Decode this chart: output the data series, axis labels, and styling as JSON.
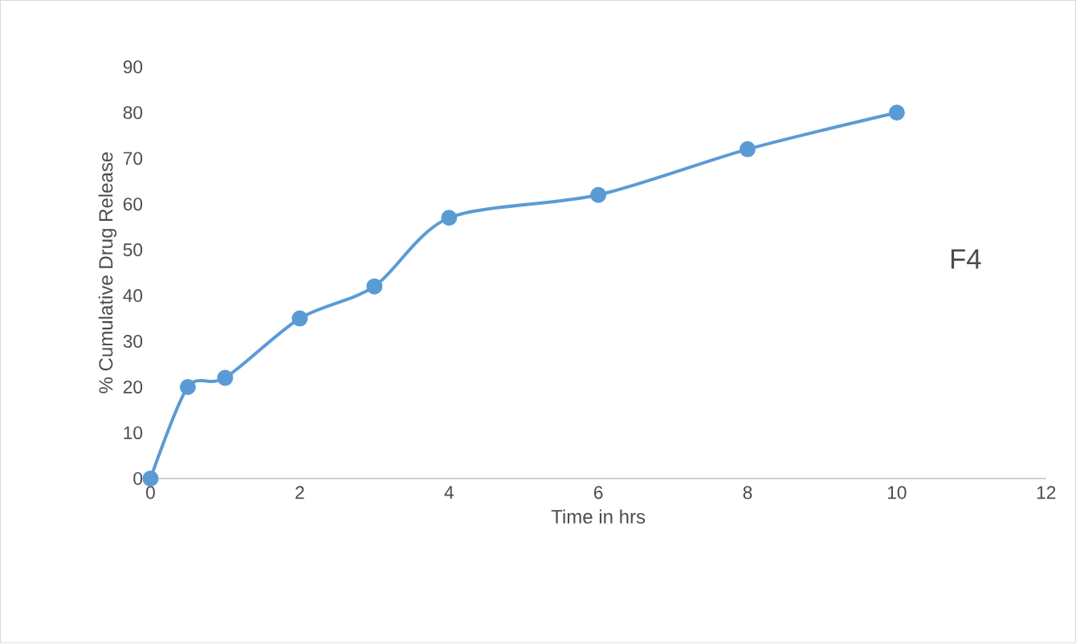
{
  "chart_data": {
    "type": "line",
    "xlabel": "Time in hrs",
    "ylabel": "% Cumulative Drug Release",
    "x": [
      0,
      0.5,
      1,
      2,
      3,
      4,
      6,
      8,
      10
    ],
    "series": [
      {
        "name": "F4",
        "color": "#5b9bd5",
        "values": [
          0,
          20,
          22,
          35,
          42,
          57,
          62,
          72,
          80
        ]
      }
    ],
    "xlim": [
      0,
      12
    ],
    "xticks": [
      0,
      2,
      4,
      6,
      8,
      10,
      12
    ],
    "ylim": [
      0,
      90
    ],
    "yticks": [
      0,
      10,
      20,
      30,
      40,
      50,
      60,
      70,
      80,
      90
    ],
    "grid": false,
    "marker": "circle",
    "line_style": "solid"
  }
}
